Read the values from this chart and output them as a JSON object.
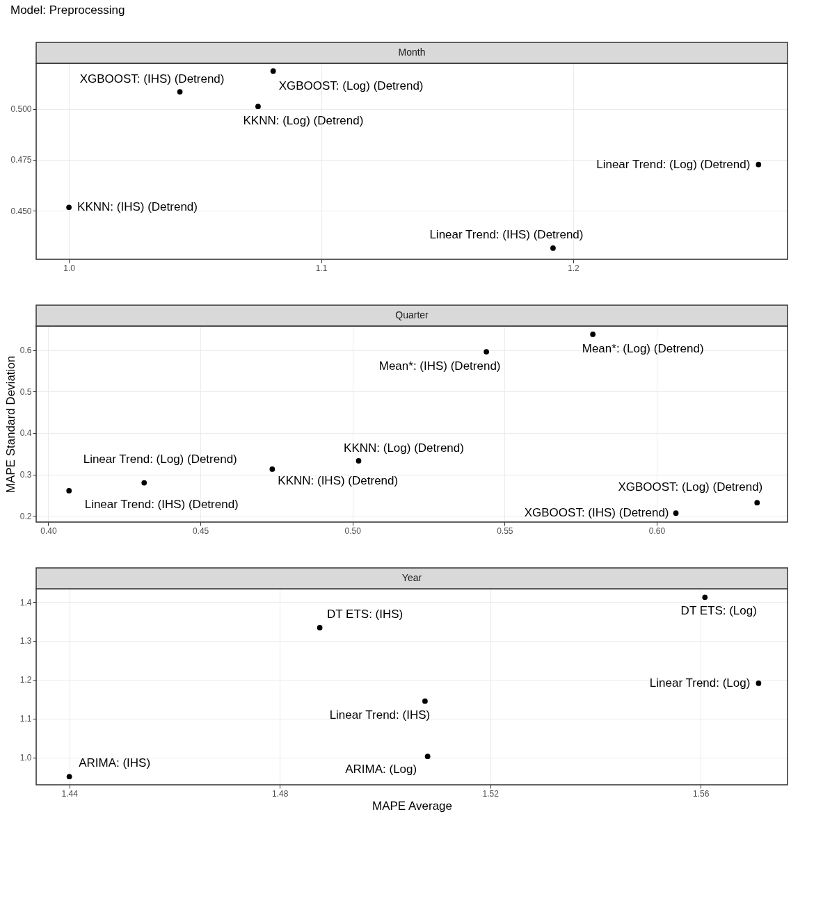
{
  "chart_data": [
    {
      "type": "scatter",
      "title": "Model: Preprocessing",
      "subtitle": "Month",
      "marker": "circle",
      "grid": true,
      "xlim": [
        0.987,
        1.285
      ],
      "ylim": [
        0.4262,
        0.5224
      ],
      "xticks": [
        {
          "value": 1.0,
          "label": "1.0"
        },
        {
          "value": 1.1,
          "label": "1.1"
        },
        {
          "value": 1.2,
          "label": "1.2"
        }
      ],
      "yticks": [
        {
          "value": 0.45,
          "label": "0.450"
        },
        {
          "value": 0.475,
          "label": "0.475"
        },
        {
          "value": 0.5,
          "label": "0.500"
        }
      ],
      "series": [
        {
          "color": "#000000",
          "x": [
            1.044,
            1.081,
            1.075,
            1.2735,
            1.0,
            1.192
          ],
          "values": [
            0.5084,
            0.5186,
            0.5012,
            0.4727,
            0.4517,
            0.4317
          ]
        }
      ],
      "annotations": [
        {
          "text": "XGBOOST: (IHS) (Detrend)",
          "x": 1.044,
          "y": 0.5084
        },
        {
          "text": "XGBOOST: (Log) (Detrend)",
          "x": 1.081,
          "y": 0.5186
        },
        {
          "text": "KKNN: (Log) (Detrend)",
          "x": 1.075,
          "y": 0.5012
        },
        {
          "text": "Linear Trend: (Log) (Detrend)",
          "x": 1.2735,
          "y": 0.4727
        },
        {
          "text": "KKNN: (IHS) (Detrend)",
          "x": 1.0,
          "y": 0.4517
        },
        {
          "text": "Linear Trend: (IHS) (Detrend)",
          "x": 1.192,
          "y": 0.4317
        }
      ]
    },
    {
      "type": "scatter",
      "subtitle": "Quarter",
      "ylabel": "MAPE Standard Deviation",
      "marker": "circle",
      "grid": true,
      "xlim": [
        0.396,
        0.643
      ],
      "ylim": [
        0.1855,
        0.658
      ],
      "xticks": [
        {
          "value": 0.4,
          "label": "0.40"
        },
        {
          "value": 0.45,
          "label": "0.45"
        },
        {
          "value": 0.5,
          "label": "0.50"
        },
        {
          "value": 0.55,
          "label": "0.55"
        },
        {
          "value": 0.6,
          "label": "0.60"
        }
      ],
      "yticks": [
        0.2,
        0.3,
        0.4,
        0.5,
        0.6
      ],
      "series": [
        {
          "color": "#000000",
          "x": [
            0.579,
            0.544,
            0.502,
            0.4736,
            0.4315,
            0.4068,
            0.633,
            0.6063
          ],
          "values": [
            0.638,
            0.596,
            0.333,
            0.313,
            0.28,
            0.261,
            0.232,
            0.207
          ]
        }
      ],
      "annotations": [
        {
          "text": "Mean*: (Log) (Detrend)",
          "x": 0.579,
          "y": 0.638
        },
        {
          "text": "Mean*: (IHS) (Detrend)",
          "x": 0.544,
          "y": 0.596
        },
        {
          "text": "KKNN: (Log) (Detrend)",
          "x": 0.502,
          "y": 0.333
        },
        {
          "text": "KKNN: (IHS) (Detrend)",
          "x": 0.4736,
          "y": 0.313
        },
        {
          "text": "Linear Trend: (Log) (Detrend)",
          "x": 0.4315,
          "y": 0.28
        },
        {
          "text": "Linear Trend: (IHS) (Detrend)",
          "x": 0.4068,
          "y": 0.261
        },
        {
          "text": "XGBOOST: (Log) (Detrend)",
          "x": 0.633,
          "y": 0.232
        },
        {
          "text": "XGBOOST: (IHS) (Detrend)",
          "x": 0.6063,
          "y": 0.207
        }
      ]
    },
    {
      "type": "scatter",
      "subtitle": "Year",
      "xlabel": "MAPE Average",
      "marker": "circle",
      "grid": true,
      "xlim": [
        1.4337,
        1.5765
      ],
      "ylim": [
        0.93,
        1.434
      ],
      "xticks": [
        1.44,
        1.48,
        1.52,
        1.56
      ],
      "yticks": [
        {
          "value": 1.0,
          "label": "1.0"
        },
        1.1,
        1.2,
        1.3,
        1.4
      ],
      "series": [
        {
          "color": "#000000",
          "x": [
            1.5608,
            1.4876,
            1.571,
            1.5076,
            1.5081,
            1.44
          ],
          "values": [
            1.412,
            1.334,
            1.191,
            1.145,
            1.003,
            0.951
          ]
        }
      ],
      "annotations": [
        {
          "text": "DT ETS: (Log)",
          "x": 1.5608,
          "y": 1.412
        },
        {
          "text": "DT ETS: (IHS)",
          "x": 1.4876,
          "y": 1.334
        },
        {
          "text": "Linear Trend: (Log)",
          "x": 1.571,
          "y": 1.191
        },
        {
          "text": "Linear Trend: (IHS)",
          "x": 1.5076,
          "y": 1.145
        },
        {
          "text": "ARIMA: (Log)",
          "x": 1.5081,
          "y": 1.003
        },
        {
          "text": "ARIMA: (IHS)",
          "x": 1.44,
          "y": 0.951
        }
      ]
    }
  ]
}
